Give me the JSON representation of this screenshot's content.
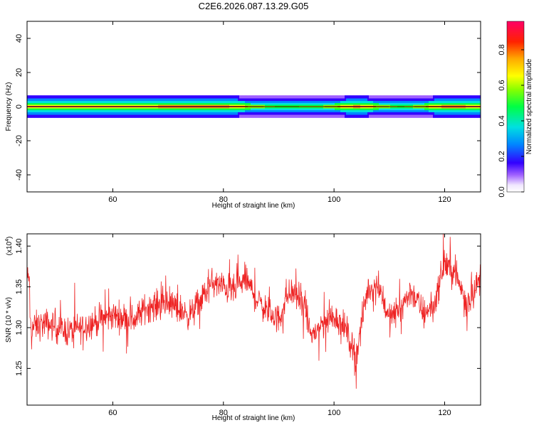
{
  "title": "C2E6.2026.087.13.29.G05",
  "chart_data": [
    {
      "type": "heatmap",
      "xlabel": "Height of straight line (km)",
      "ylabel": "Frequency (Hz)",
      "xlim": [
        44.5,
        126.5
      ],
      "ylim": [
        -50,
        50
      ],
      "x_ticks": [
        "60",
        "80",
        "100",
        "120"
      ],
      "y_ticks": [
        "40",
        "20",
        "0",
        "-20",
        "-40"
      ],
      "colorbar": {
        "label": "Normalized spectral amplitude",
        "range": [
          0,
          0.96
        ],
        "ticks": [
          "0.0",
          "0.2",
          "0.4",
          "0.6",
          "0.8"
        ]
      },
      "band": {
        "center_frequency": 0,
        "half_width_hz": 3,
        "description_values": [
          {
            "x": 45,
            "peak": 0.85
          },
          {
            "x": 60,
            "peak": 0.85
          },
          {
            "x": 80,
            "peak": 0.9
          },
          {
            "x": 90,
            "peak": 0.55
          },
          {
            "x": 97,
            "peak": 0.6
          },
          {
            "x": 104,
            "peak": 0.9
          },
          {
            "x": 112,
            "peak": 0.55
          },
          {
            "x": 120,
            "peak": 0.9
          },
          {
            "x": 126,
            "peak": 0.85
          }
        ]
      }
    },
    {
      "type": "line",
      "xlabel": "Height of straight line (km)",
      "ylabel": "SNR (10 * v/v)",
      "y_multiplier": "(x10",
      "y_multiplier_exp": "4",
      "y_multiplier_close": ")",
      "xlim": [
        44.5,
        126.5
      ],
      "ylim": [
        1.205,
        1.415
      ],
      "x_ticks": [
        "60",
        "80",
        "100",
        "120"
      ],
      "y_ticks": [
        "1.40",
        "1.35",
        "1.30",
        "1.25"
      ],
      "series": [
        {
          "color": "#ee2222",
          "x": [
            45,
            48,
            52,
            56,
            60,
            64,
            66,
            70,
            74,
            78,
            80,
            82,
            84,
            86,
            88,
            90,
            92,
            94,
            96,
            98,
            100,
            102,
            104,
            106,
            108,
            110,
            112,
            114,
            116,
            118,
            120,
            122,
            124,
            126.5
          ],
          "values": [
            1.3,
            1.305,
            1.295,
            1.305,
            1.315,
            1.31,
            1.325,
            1.33,
            1.315,
            1.355,
            1.35,
            1.345,
            1.36,
            1.335,
            1.32,
            1.31,
            1.345,
            1.335,
            1.29,
            1.305,
            1.315,
            1.3,
            1.265,
            1.345,
            1.355,
            1.31,
            1.325,
            1.345,
            1.32,
            1.325,
            1.38,
            1.365,
            1.33,
            1.36
          ],
          "noise_amplitude": 0.018
        }
      ]
    }
  ],
  "colors": {
    "line": "#ee2222",
    "axis": "#000000",
    "background": "#ffffff"
  }
}
